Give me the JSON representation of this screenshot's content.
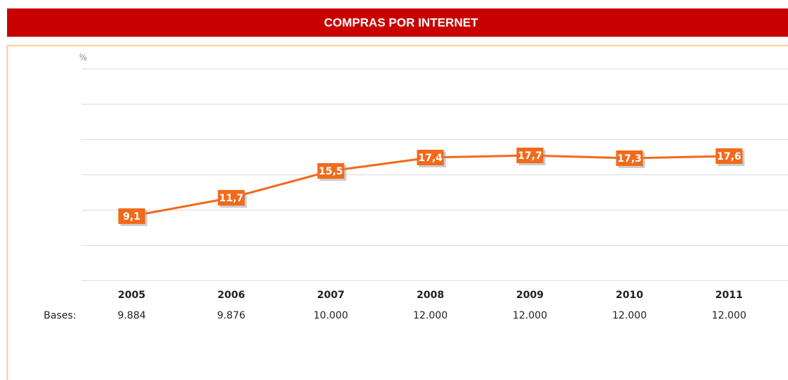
{
  "chart_data": {
    "type": "line",
    "title": "COMPRAS POR INTERNET",
    "y_label": "%",
    "categories": [
      "2005",
      "2006",
      "2007",
      "2008",
      "2009",
      "2010",
      "2011"
    ],
    "series": [
      {
        "name": "Compras por internet",
        "color": "#f26a1b",
        "values": [
          9.1,
          11.7,
          15.5,
          17.4,
          17.7,
          17.3,
          17.6
        ],
        "value_labels": [
          "9,1",
          "11,7",
          "15,5",
          "17,4",
          "17,7",
          "17,3",
          "17,6"
        ]
      }
    ],
    "ylim": [
      0,
      30
    ],
    "yticks": [
      0,
      5,
      10,
      15,
      20,
      25,
      30
    ],
    "grid": true,
    "bases": {
      "label": "Bases:",
      "values": [
        9884,
        9876,
        10000,
        12000,
        12000,
        12000,
        12000
      ],
      "value_labels": [
        "9.884",
        "9.876",
        "10.000",
        "12.000",
        "12.000",
        "12.000",
        "12.000"
      ]
    }
  }
}
